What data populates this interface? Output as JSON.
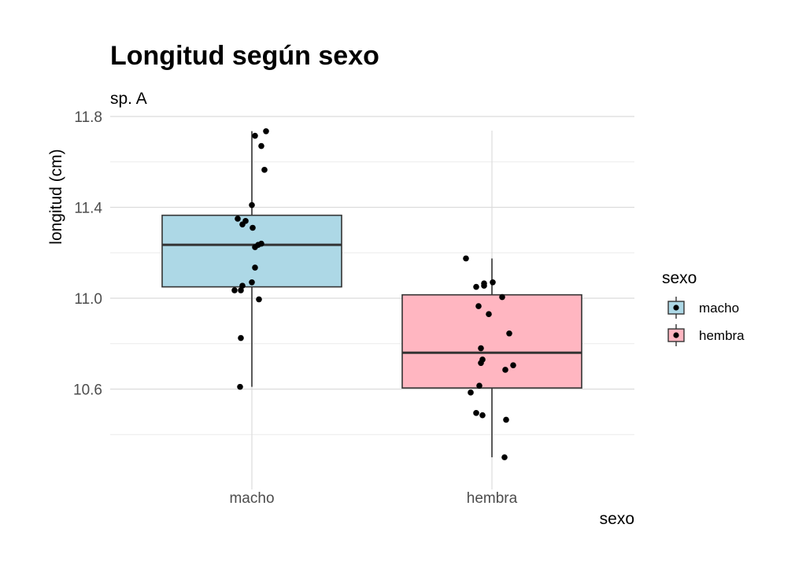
{
  "chart_data": {
    "type": "boxplot",
    "title": "Longitud según sexo",
    "subtitle": "sp. A",
    "xlabel": "sexo",
    "ylabel": "longitud (cm)",
    "ylim": [
      10.2,
      11.8
    ],
    "yticks": [
      "10.6",
      "11.0",
      "11.4",
      "11.8"
    ],
    "categories": [
      "macho",
      "hembra"
    ],
    "colors": {
      "macho": "#add8e6",
      "hembra": "#ffb6c1"
    },
    "boxes": [
      {
        "name": "macho",
        "lower_whisker": 10.61,
        "q1": 11.05,
        "median": 11.235,
        "q3": 11.365,
        "upper_whisker": 11.735
      },
      {
        "name": "hembra",
        "lower_whisker": 10.3,
        "q1": 10.605,
        "median": 10.76,
        "q3": 11.015,
        "upper_whisker": 11.175
      }
    ],
    "points": [
      {
        "category": "macho",
        "values": [
          11.735,
          11.715,
          11.67,
          11.565,
          11.41,
          11.35,
          11.34,
          11.325,
          11.31,
          11.24,
          11.235,
          11.225,
          11.135,
          11.07,
          11.055,
          11.035,
          11.035,
          10.995,
          10.825,
          10.61
        ]
      },
      {
        "category": "hembra",
        "values": [
          11.175,
          11.07,
          11.065,
          11.055,
          11.05,
          11.005,
          10.965,
          10.93,
          10.845,
          10.78,
          10.73,
          10.715,
          10.705,
          10.685,
          10.615,
          10.585,
          10.495,
          10.485,
          10.465,
          10.3
        ]
      }
    ],
    "legend": {
      "title": "sexo",
      "position": "right",
      "items": [
        "macho",
        "hembra"
      ]
    },
    "grid": true
  }
}
